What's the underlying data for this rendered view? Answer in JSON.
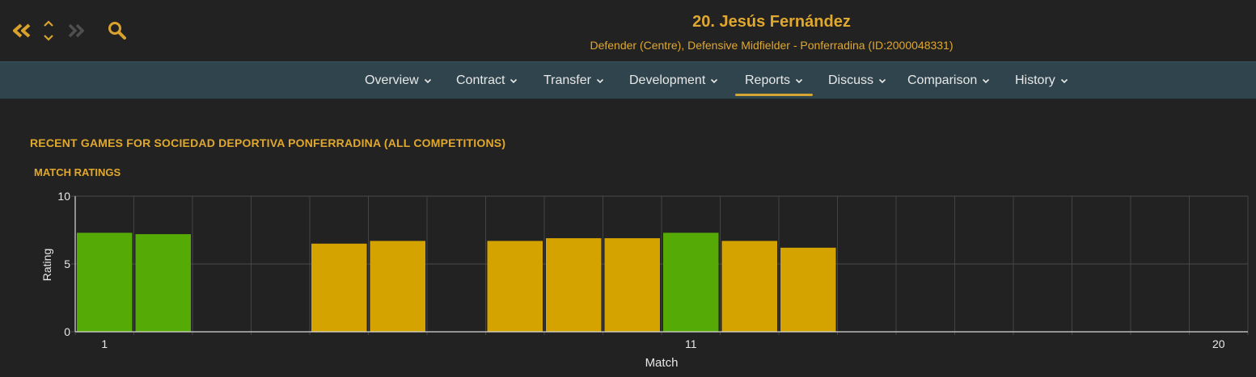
{
  "header": {
    "player_name": "20. Jesús Fernández",
    "player_subtitle": "Defender (Centre), Defensive Midfielder - Ponferradina (ID:2000048331)"
  },
  "colors": {
    "accent": "#e0a82e",
    "bar_good": "#56aa06",
    "bar_ok": "#d4a300",
    "tab_bar": "#2f444d"
  },
  "tabs": [
    {
      "label": "Overview"
    },
    {
      "label": "Contract"
    },
    {
      "label": "Transfer"
    },
    {
      "label": "Development"
    },
    {
      "label": "Reports",
      "active": true
    },
    {
      "label": "Discuss"
    },
    {
      "label": "Comparison"
    },
    {
      "label": "History"
    }
  ],
  "section_title": "RECENT GAMES FOR SOCIEDAD DEPORTIVA PONFERRADINA (ALL COMPETITIONS)",
  "chart_title": "MATCH RATINGS",
  "chart_data": {
    "type": "bar",
    "title": "MATCH RATINGS",
    "xlabel": "Match",
    "ylabel": "Rating",
    "ylim": [
      0,
      10
    ],
    "xlim": [
      0.5,
      20.5
    ],
    "x_ticks": [
      1,
      11,
      20
    ],
    "y_ticks": [
      0,
      5,
      10
    ],
    "grid": true,
    "points": [
      {
        "match": 1,
        "rating": 7.3,
        "color": "#56aa06"
      },
      {
        "match": 2,
        "rating": 7.2,
        "color": "#56aa06"
      },
      {
        "match": 5,
        "rating": 6.5,
        "color": "#d4a300"
      },
      {
        "match": 6,
        "rating": 6.7,
        "color": "#d4a300"
      },
      {
        "match": 8,
        "rating": 6.7,
        "color": "#d4a300"
      },
      {
        "match": 9,
        "rating": 6.9,
        "color": "#d4a300"
      },
      {
        "match": 10,
        "rating": 6.9,
        "color": "#d4a300"
      },
      {
        "match": 11,
        "rating": 7.3,
        "color": "#56aa06"
      },
      {
        "match": 12,
        "rating": 6.7,
        "color": "#d4a300"
      },
      {
        "match": 13,
        "rating": 6.2,
        "color": "#d4a300"
      }
    ]
  }
}
